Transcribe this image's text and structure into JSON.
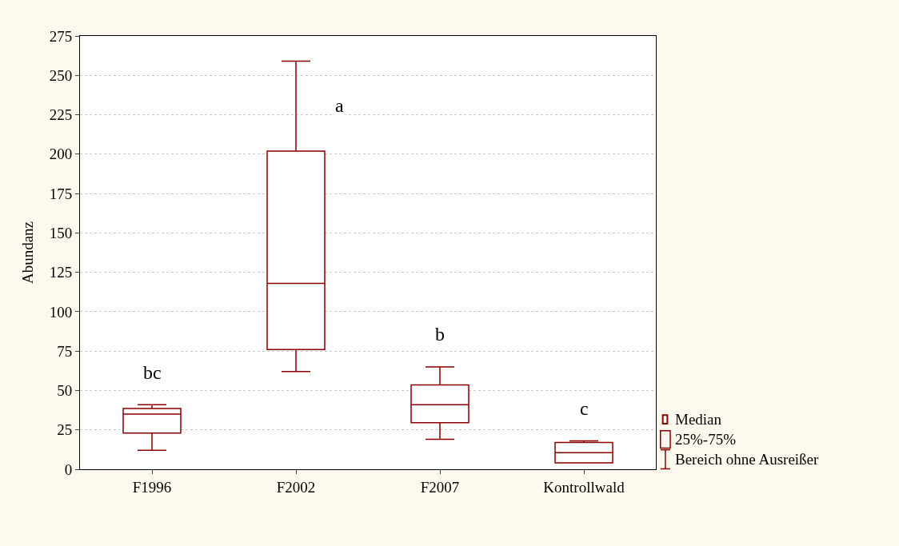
{
  "chart_data": {
    "type": "box",
    "ylabel": "Abundanz",
    "categories": [
      "F1996",
      "F2002",
      "F2007",
      "Kontrollwald"
    ],
    "boxes": [
      {
        "low": 12,
        "q1": 23,
        "median": 35,
        "q3": 38.5,
        "high": 41
      },
      {
        "low": 62,
        "q1": 76,
        "median": 118,
        "q3": 202,
        "high": 259
      },
      {
        "low": 19,
        "q1": 29.5,
        "median": 41,
        "q3": 53.5,
        "high": 65
      },
      {
        "low": 4,
        "q1": 4,
        "median": 10.5,
        "q3": 17,
        "high": 18
      }
    ],
    "color": "#8b0000",
    "ylim": [
      0,
      275
    ],
    "yticks": [
      0,
      25,
      50,
      75,
      100,
      125,
      150,
      175,
      200,
      225,
      250,
      275
    ],
    "grid": "y",
    "annotations": [
      "bc",
      "a",
      "b",
      "c",
      "Median",
      "25%-75%",
      "Bereich ohne Ausreißer"
    ]
  }
}
